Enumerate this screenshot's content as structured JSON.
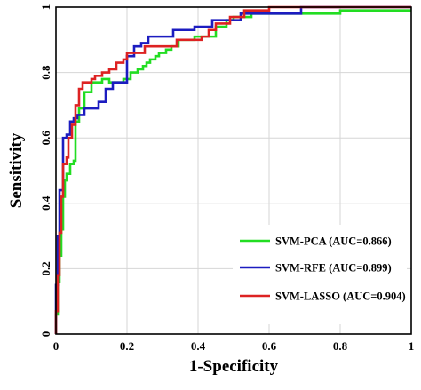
{
  "chart_data": {
    "type": "line",
    "xlabel": "1-Specificity",
    "ylabel": "Sensitivity",
    "xlim": [
      0,
      1
    ],
    "ylim": [
      0,
      1
    ],
    "x_ticks": [
      0,
      0.2,
      0.4,
      0.6,
      0.8,
      1
    ],
    "x_tick_labels": [
      "0",
      "0.2",
      "0.4",
      "0.6",
      "0.8",
      "1"
    ],
    "y_ticks": [
      0,
      0.2,
      0.4,
      0.6,
      0.8,
      1
    ],
    "y_tick_labels": [
      "0",
      "0.2",
      "0.4",
      "0.6",
      "0.8",
      "1"
    ],
    "grid": true,
    "legend_position": "bottom-right",
    "series": [
      {
        "name": "SVM-PCA (AUC=0.866)",
        "color": "#22dd22",
        "x": [
          0,
          0,
          0.005,
          0.005,
          0.01,
          0.01,
          0.015,
          0.015,
          0.02,
          0.02,
          0.025,
          0.025,
          0.03,
          0.03,
          0.04,
          0.04,
          0.05,
          0.05,
          0.055,
          0.055,
          0.065,
          0.065,
          0.08,
          0.08,
          0.1,
          0.1,
          0.13,
          0.13,
          0.15,
          0.15,
          0.19,
          0.19,
          0.21,
          0.21,
          0.23,
          0.23,
          0.245,
          0.245,
          0.255,
          0.255,
          0.265,
          0.265,
          0.28,
          0.28,
          0.29,
          0.29,
          0.31,
          0.31,
          0.325,
          0.325,
          0.345,
          0.345,
          0.39,
          0.39,
          0.45,
          0.45,
          0.48,
          0.48,
          0.5,
          0.5,
          0.55,
          0.55,
          0.8,
          0.8,
          1
        ],
        "y": [
          0,
          0.06,
          0.06,
          0.16,
          0.16,
          0.24,
          0.24,
          0.32,
          0.32,
          0.42,
          0.42,
          0.47,
          0.47,
          0.49,
          0.49,
          0.52,
          0.52,
          0.53,
          0.53,
          0.65,
          0.65,
          0.69,
          0.69,
          0.74,
          0.74,
          0.77,
          0.77,
          0.78,
          0.78,
          0.77,
          0.77,
          0.78,
          0.78,
          0.8,
          0.8,
          0.81,
          0.81,
          0.82,
          0.82,
          0.83,
          0.83,
          0.84,
          0.84,
          0.85,
          0.85,
          0.86,
          0.86,
          0.87,
          0.87,
          0.88,
          0.88,
          0.9,
          0.9,
          0.91,
          0.91,
          0.94,
          0.94,
          0.96,
          0.96,
          0.97,
          0.97,
          0.98,
          0.98,
          0.99,
          0.99
        ]
      },
      {
        "name": "SVM-RFE (AUC=0.899)",
        "color": "#1c1cc0",
        "x": [
          0,
          0,
          0.005,
          0.005,
          0.01,
          0.01,
          0.02,
          0.02,
          0.03,
          0.03,
          0.04,
          0.04,
          0.05,
          0.05,
          0.06,
          0.06,
          0.08,
          0.08,
          0.12,
          0.12,
          0.14,
          0.14,
          0.16,
          0.16,
          0.2,
          0.2,
          0.22,
          0.22,
          0.24,
          0.24,
          0.26,
          0.26,
          0.33,
          0.33,
          0.39,
          0.39,
          0.44,
          0.44,
          0.52,
          0.52,
          0.69,
          0.69,
          1
        ],
        "y": [
          0,
          0.15,
          0.15,
          0.3,
          0.3,
          0.44,
          0.44,
          0.6,
          0.6,
          0.61,
          0.61,
          0.65,
          0.65,
          0.66,
          0.66,
          0.67,
          0.67,
          0.69,
          0.69,
          0.71,
          0.71,
          0.75,
          0.75,
          0.77,
          0.77,
          0.85,
          0.85,
          0.88,
          0.88,
          0.89,
          0.89,
          0.91,
          0.91,
          0.93,
          0.93,
          0.94,
          0.94,
          0.96,
          0.96,
          0.98,
          0.98,
          1,
          1
        ]
      },
      {
        "name": "SVM-LASSO (AUC=0.904)",
        "color": "#dd2222",
        "x": [
          0,
          0,
          0.005,
          0.005,
          0.01,
          0.01,
          0.015,
          0.015,
          0.02,
          0.02,
          0.03,
          0.03,
          0.035,
          0.035,
          0.045,
          0.045,
          0.055,
          0.055,
          0.065,
          0.065,
          0.075,
          0.075,
          0.1,
          0.1,
          0.11,
          0.11,
          0.13,
          0.13,
          0.15,
          0.15,
          0.17,
          0.17,
          0.19,
          0.19,
          0.2,
          0.2,
          0.25,
          0.25,
          0.34,
          0.34,
          0.41,
          0.41,
          0.43,
          0.43,
          0.45,
          0.45,
          0.49,
          0.49,
          0.53,
          0.53,
          0.6,
          0.6,
          1
        ],
        "y": [
          0,
          0.07,
          0.07,
          0.18,
          0.18,
          0.31,
          0.31,
          0.42,
          0.42,
          0.52,
          0.52,
          0.54,
          0.54,
          0.6,
          0.6,
          0.64,
          0.64,
          0.7,
          0.7,
          0.75,
          0.75,
          0.77,
          0.77,
          0.78,
          0.78,
          0.79,
          0.79,
          0.8,
          0.8,
          0.81,
          0.81,
          0.83,
          0.83,
          0.84,
          0.84,
          0.86,
          0.86,
          0.88,
          0.88,
          0.9,
          0.9,
          0.91,
          0.91,
          0.93,
          0.93,
          0.95,
          0.95,
          0.97,
          0.97,
          0.99,
          0.99,
          1,
          1
        ]
      }
    ]
  }
}
